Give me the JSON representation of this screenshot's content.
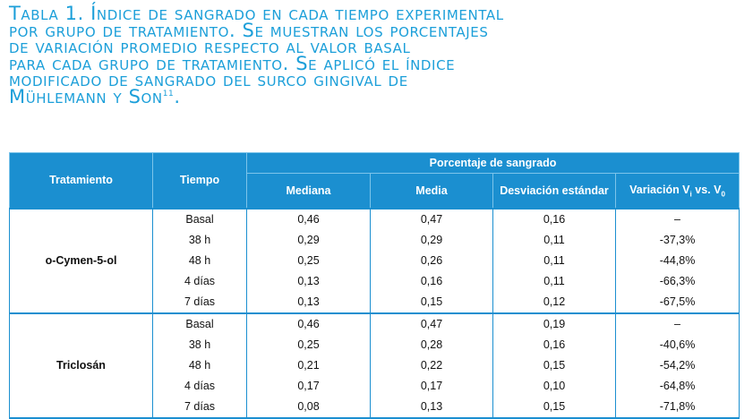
{
  "title": {
    "lines": [
      "Tabla 1. Índice de sangrado en cada tiempo experimental",
      "por grupo de tratamiento. Se muestran los porcentajes",
      "de variación promedio respecto al valor basal",
      "para cada grupo de tratamiento. Se aplicó el índice",
      "modificado de sangrado del surco gingival de",
      "Mühlemann y Son"
    ],
    "reference": "11",
    "end": "."
  },
  "header": {
    "treatment": "Tratamiento",
    "time": "Tiempo",
    "group": "Porcentaje de sangrado",
    "median": "Mediana",
    "mean": "Media",
    "sd": "Desviación estándar",
    "variation": [
      "Variación V",
      "i",
      " vs. V",
      "0"
    ]
  },
  "groups": [
    {
      "name": "o-Cymen-5-ol",
      "rows": [
        [
          "Basal",
          "0,46",
          "0,47",
          "0,16",
          "–"
        ],
        [
          "38 h",
          "0,29",
          "0,29",
          "0,11",
          "-37,3%"
        ],
        [
          "48 h",
          "0,25",
          "0,26",
          "0,11",
          "-44,8%"
        ],
        [
          "4 días",
          "0,13",
          "0,16",
          "0,11",
          "-66,3%"
        ],
        [
          "7 días",
          "0,13",
          "0,15",
          "0,12",
          "-67,5%"
        ]
      ]
    },
    {
      "name": "Triclosán",
      "rows": [
        [
          "Basal",
          "0,46",
          "0,47",
          "0,19",
          "–"
        ],
        [
          "38 h",
          "0,25",
          "0,28",
          "0,16",
          "-40,6%"
        ],
        [
          "48 h",
          "0,21",
          "0,22",
          "0,15",
          "-54,2%"
        ],
        [
          "4 días",
          "0,17",
          "0,17",
          "0,10",
          "-64,8%"
        ],
        [
          "7 días",
          "0,08",
          "0,13",
          "0,15",
          "-71,8%"
        ]
      ]
    }
  ]
}
